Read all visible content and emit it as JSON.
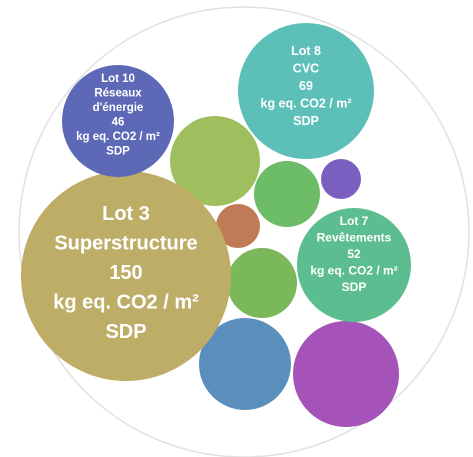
{
  "chart_data": {
    "type": "bubble",
    "title": "",
    "unit": "kg eq. CO2 / m² SDP",
    "grid": false,
    "legend": "none",
    "labeled_bubbles": [
      {
        "lines": [
          "Lot 3",
          "Superstructure",
          "150",
          "kg eq. CO2 / m²",
          "SDP"
        ],
        "lot": "Lot 3",
        "name": "Superstructure",
        "value": 150,
        "color": "#bead66"
      },
      {
        "lines": [
          "Lot 8",
          "CVC",
          "69",
          "kg eq. CO2 / m²",
          "SDP"
        ],
        "lot": "Lot 8",
        "name": "CVC",
        "value": 69,
        "color": "#5dc0b8"
      },
      {
        "lines": [
          "Lot 7",
          "Revêtements",
          "52",
          "kg eq. CO2 / m²",
          "SDP"
        ],
        "lot": "Lot 7",
        "name": "Revêtements",
        "value": 52,
        "color": "#5cbd90"
      },
      {
        "lines": [
          "Lot 10",
          "Réseaux",
          "d'énergie",
          "46",
          "kg eq. CO2 / m²",
          "SDP"
        ],
        "lot": "Lot 10",
        "name": "Réseaux d'énergie",
        "value": 46,
        "color": "#5d68b7"
      }
    ],
    "unlabeled_bubbles": [
      {
        "color": "#a553b8"
      },
      {
        "color": "#5a8fbd"
      },
      {
        "color": "#9fbe5d"
      },
      {
        "color": "#7ab85a"
      },
      {
        "color": "#6dbc68"
      },
      {
        "color": "#c07a56"
      },
      {
        "color": "#7a5ec0"
      }
    ],
    "outer_circle_color": "#e1e1e1"
  }
}
